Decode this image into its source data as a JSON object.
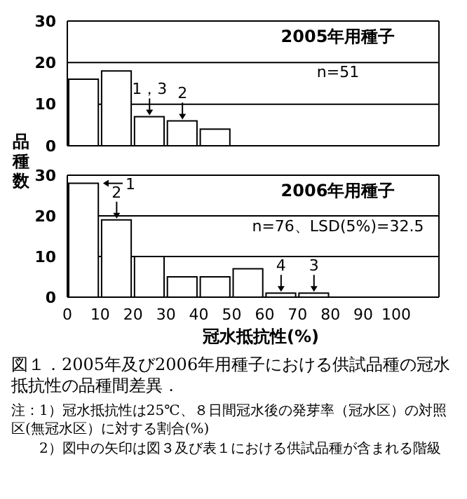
{
  "chart_data": [
    {
      "type": "histogram",
      "title": "2005年用種子",
      "subtitle": "n=51",
      "ylabel": "品種数",
      "bins": [
        0,
        10,
        20,
        30,
        40,
        50,
        60,
        70,
        80,
        90,
        100
      ],
      "values": [
        16,
        18,
        7,
        6,
        4,
        0,
        0,
        0,
        0,
        0
      ],
      "color": "#ffffff",
      "xlim": [
        0,
        113
      ],
      "xticks": [
        0,
        10,
        20,
        30,
        40,
        50,
        60,
        70,
        80,
        90,
        100
      ],
      "ylim": [
        0,
        30
      ],
      "yticks": [
        0,
        10,
        20,
        30
      ],
      "grid": "y",
      "tick_labels": "y",
      "annotations": [
        {
          "text": "1，3",
          "x": 25,
          "y": 7
        },
        {
          "text": "2",
          "x": 35,
          "y": 6
        }
      ]
    },
    {
      "type": "histogram",
      "title": "2006年用種子",
      "subtitle": "n=76、LSD(5%)=32.5",
      "xlabel": "冠水抵抗性(%)",
      "bins": [
        0,
        10,
        20,
        30,
        40,
        50,
        60,
        70,
        80,
        90,
        100
      ],
      "values": [
        28,
        19,
        10,
        5,
        5,
        7,
        1,
        1,
        0,
        0
      ],
      "color": "#ffffff",
      "xlim": [
        0,
        113
      ],
      "xticks": [
        0,
        10,
        20,
        30,
        40,
        50,
        60,
        70,
        80,
        90,
        100
      ],
      "ylim": [
        0,
        30
      ],
      "yticks": [
        0,
        10,
        20,
        30
      ],
      "grid": "y",
      "annotations": [
        {
          "text": "1",
          "x": 10,
          "y": 28
        },
        {
          "text": "2",
          "x": 15,
          "y": 19
        },
        {
          "text": "4",
          "x": 65,
          "y": 1
        },
        {
          "text": "3",
          "x": 75,
          "y": 1
        },
        "図１．2005年及び2006年用種子における供試品種の冠水抵抗性の品種間差異．",
        "注：1）冠水抵抗性は25℃、８日間冠水後の発芽率（冠水区）の対照区(無冠水区）に対する割合(%)",
        "2）図中の矢印は図３及び表１における供試品種が含まれる階級"
      ]
    }
  ]
}
